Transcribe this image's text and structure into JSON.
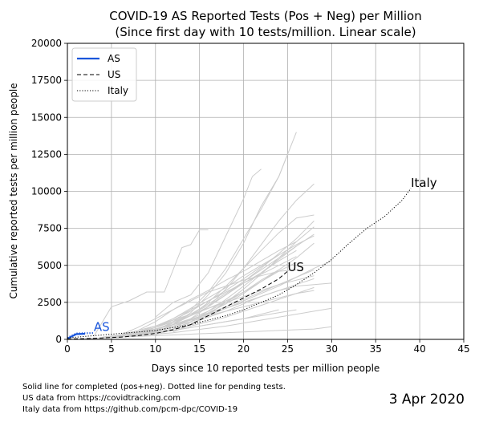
{
  "chart_data": {
    "type": "line",
    "title": "COVID-19 AS Reported Tests (Pos + Neg) per Million",
    "subtitle": "(Since first day with 10 tests/million. Linear scale)",
    "xlabel": "Days since 10 reported tests per million people",
    "ylabel": "Cumulative reported tests per million people",
    "xlim": [
      0,
      45
    ],
    "ylim": [
      0,
      20000
    ],
    "xticks": [
      0,
      5,
      10,
      15,
      20,
      25,
      30,
      35,
      40,
      45
    ],
    "yticks": [
      0,
      2500,
      5000,
      7500,
      10000,
      12500,
      15000,
      17500,
      20000
    ],
    "grid": true,
    "legend": {
      "placement": "top-left",
      "entries": [
        {
          "label": "AS",
          "style": "solid",
          "color": "#1a56db"
        },
        {
          "label": "US",
          "style": "dashed",
          "color": "#000000"
        },
        {
          "label": "Italy",
          "style": "dotted",
          "color": "#000000"
        }
      ]
    },
    "series": [
      {
        "name": "AS",
        "style": "solid",
        "color": "#1a56db",
        "x": [
          0,
          1,
          2
        ],
        "y": [
          50,
          350,
          380
        ]
      },
      {
        "name": "AS",
        "style": "dotted",
        "color": "#1a56db",
        "x": [
          0,
          1,
          2,
          3
        ],
        "y": [
          100,
          400,
          420,
          430
        ]
      },
      {
        "name": "US",
        "style": "dashed",
        "color": "#000000",
        "x": [
          0,
          2,
          4,
          6,
          8,
          10,
          12,
          14,
          16,
          18,
          20,
          22,
          24,
          25
        ],
        "y": [
          20,
          50,
          100,
          150,
          250,
          400,
          650,
          1000,
          1600,
          2200,
          2800,
          3400,
          4100,
          4600
        ]
      },
      {
        "name": "Italy",
        "style": "dotted",
        "color": "#000000",
        "x": [
          0,
          2,
          4,
          6,
          8,
          10,
          12,
          14,
          16,
          18,
          20,
          22,
          24,
          26,
          28,
          30,
          32,
          34,
          36,
          38,
          39
        ],
        "y": [
          100,
          200,
          300,
          400,
          500,
          600,
          800,
          1000,
          1300,
          1600,
          2000,
          2500,
          3000,
          3700,
          4500,
          5400,
          6500,
          7500,
          8300,
          9400,
          10200
        ]
      }
    ],
    "annotations": [
      {
        "text": "AS",
        "x": 3,
        "y": 570,
        "color": "#1a56db"
      },
      {
        "text": "US",
        "x": 25,
        "y": 4600,
        "color": "#000000"
      },
      {
        "text": "Italy",
        "x": 39,
        "y": 10300,
        "color": "#000000"
      }
    ],
    "background_series_color": "#cccccc",
    "background_series": [
      {
        "x": [
          3,
          5,
          7,
          9,
          11,
          13,
          14,
          15,
          16
        ],
        "y": [
          200,
          2200,
          2600,
          3200,
          3200,
          6200,
          6400,
          7400,
          7400
        ]
      },
      {
        "x": [
          10,
          12,
          14,
          16,
          18,
          20,
          21,
          22
        ],
        "y": [
          1500,
          2500,
          3000,
          4500,
          7000,
          9500,
          11000,
          11500
        ]
      },
      {
        "x": [
          12,
          14,
          16,
          18,
          20,
          22,
          24,
          26
        ],
        "y": [
          1000,
          1800,
          3000,
          4500,
          6500,
          9000,
          11000,
          14000
        ]
      },
      {
        "x": [
          10,
          12,
          14,
          16,
          18,
          20,
          22,
          24,
          25
        ],
        "y": [
          600,
          1200,
          2000,
          3200,
          4800,
          6800,
          8800,
          11000,
          12500
        ]
      },
      {
        "x": [
          12,
          14,
          16,
          18,
          20,
          22,
          24,
          26,
          28
        ],
        "y": [
          700,
          1400,
          2200,
          3400,
          4800,
          6400,
          8000,
          9400,
          10500
        ]
      },
      {
        "x": [
          10,
          12,
          14,
          16,
          18,
          20,
          22,
          24,
          26,
          28
        ],
        "y": [
          500,
          1000,
          1600,
          2500,
          3600,
          4800,
          6000,
          7200,
          8200,
          8400
        ]
      },
      {
        "x": [
          8,
          10,
          12,
          14,
          16,
          18,
          20,
          22,
          24,
          26,
          28
        ],
        "y": [
          300,
          700,
          1100,
          1600,
          2200,
          3000,
          3900,
          4800,
          5800,
          6800,
          8000
        ]
      },
      {
        "x": [
          8,
          10,
          12,
          14,
          16,
          18,
          20,
          22,
          24,
          26,
          28
        ],
        "y": [
          250,
          550,
          900,
          1300,
          1800,
          2400,
          3100,
          3900,
          4700,
          5500,
          6500
        ]
      },
      {
        "x": [
          6,
          8,
          10,
          12,
          14,
          16,
          18,
          20,
          22,
          24,
          26
        ],
        "y": [
          300,
          500,
          800,
          1200,
          1700,
          2300,
          3000,
          3800,
          4500,
          5300,
          6000
        ]
      },
      {
        "x": [
          6,
          8,
          10,
          12,
          14,
          16,
          18,
          20,
          22,
          24,
          26,
          28,
          30
        ],
        "y": [
          200,
          400,
          600,
          900,
          1200,
          1600,
          2100,
          2600,
          3100,
          3600,
          4200,
          4800,
          5300
        ]
      },
      {
        "x": [
          4,
          6,
          8,
          10,
          12,
          14,
          16,
          18,
          20,
          22,
          24,
          26
        ],
        "y": [
          150,
          300,
          500,
          800,
          1200,
          1600,
          2100,
          2600,
          3200,
          3900,
          4600,
          5200
        ]
      },
      {
        "x": [
          4,
          6,
          8,
          10,
          12,
          14,
          16,
          18,
          20,
          22,
          24,
          26,
          28,
          30
        ],
        "y": [
          100,
          200,
          350,
          550,
          800,
          1100,
          1500,
          1900,
          2400,
          2900,
          3300,
          3600,
          3700,
          3800
        ]
      },
      {
        "x": [
          4,
          6,
          8,
          10,
          12,
          14,
          16,
          18,
          20,
          22,
          24
        ],
        "y": [
          100,
          250,
          450,
          700,
          1000,
          1400,
          1900,
          2500,
          3200,
          4000,
          4700
        ]
      },
      {
        "x": [
          2,
          4,
          6,
          8,
          10,
          12,
          14,
          16,
          18,
          20,
          22,
          24,
          26,
          28
        ],
        "y": [
          50,
          100,
          200,
          350,
          500,
          700,
          900,
          1200,
          1500,
          1900,
          2300,
          2700,
          3100,
          3500
        ]
      },
      {
        "x": [
          6,
          8,
          10,
          12,
          14,
          16,
          18,
          20,
          22,
          24,
          26
        ],
        "y": [
          300,
          800,
          1400,
          2000,
          2600,
          3200,
          3600,
          4000,
          4300,
          4600,
          4700
        ]
      },
      {
        "x": [
          8,
          10,
          12,
          14,
          16,
          18,
          20,
          22,
          24,
          26
        ],
        "y": [
          600,
          1200,
          2000,
          2700,
          3300,
          4000,
          4600,
          5300,
          6000,
          6600
        ]
      },
      {
        "x": [
          10,
          12,
          14,
          16,
          18,
          20,
          22,
          24,
          26,
          28
        ],
        "y": [
          800,
          1400,
          2100,
          2800,
          3500,
          4300,
          5000,
          5700,
          6400,
          7000
        ]
      },
      {
        "x": [
          6,
          8,
          10,
          12,
          14,
          16,
          18,
          20,
          22,
          24,
          26,
          28
        ],
        "y": [
          200,
          400,
          700,
          1000,
          1300,
          1600,
          1900,
          2200,
          2500,
          2800,
          3100,
          3300
        ]
      },
      {
        "x": [
          4,
          6,
          8,
          10,
          12,
          14,
          16,
          18,
          20,
          22,
          24,
          26,
          28,
          30
        ],
        "y": [
          100,
          150,
          250,
          350,
          450,
          600,
          750,
          900,
          1100,
          1300,
          1500,
          1700,
          1900,
          2100
        ]
      },
      {
        "x": [
          2,
          4,
          6,
          8,
          10,
          12,
          14,
          16,
          18,
          20,
          22,
          24,
          26,
          28,
          30
        ],
        "y": [
          50,
          100,
          150,
          200,
          250,
          300,
          350,
          400,
          450,
          500,
          550,
          600,
          650,
          700,
          850
        ]
      },
      {
        "x": [
          6,
          8,
          10,
          12,
          14,
          16,
          18,
          20,
          22,
          24,
          26,
          28
        ],
        "y": [
          250,
          450,
          700,
          1000,
          1350,
          1750,
          2200,
          2700,
          3200,
          3700,
          4200,
          4700
        ]
      },
      {
        "x": [
          8,
          10,
          12,
          14,
          16,
          18,
          20,
          22,
          24
        ],
        "y": [
          400,
          800,
          1300,
          1900,
          2600,
          3300,
          4100,
          4900,
          5700
        ]
      },
      {
        "x": [
          10,
          12,
          14,
          16,
          18,
          20,
          22,
          24,
          26
        ],
        "y": [
          300,
          700,
          1200,
          1900,
          2700,
          3600,
          4500,
          5400,
          6300
        ]
      },
      {
        "x": [
          12,
          14,
          16,
          18,
          20,
          22,
          24,
          26,
          28
        ],
        "y": [
          500,
          1000,
          1700,
          2500,
          3400,
          4400,
          5500,
          6600,
          7600
        ]
      },
      {
        "x": [
          4,
          6,
          8,
          10,
          12,
          14,
          16,
          18,
          20,
          22,
          24,
          26,
          28
        ],
        "y": [
          150,
          300,
          500,
          700,
          1000,
          1300,
          1700,
          2100,
          2500,
          2900,
          3300,
          3700,
          4100
        ]
      },
      {
        "x": [
          4,
          6,
          8,
          10,
          12,
          14,
          16,
          18,
          20,
          22,
          24,
          26
        ],
        "y": [
          100,
          200,
          300,
          450,
          600,
          800,
          1000,
          1200,
          1400,
          1600,
          1800,
          2000
        ]
      },
      {
        "x": [
          2,
          4,
          6,
          8,
          10,
          12,
          14,
          16,
          18,
          20,
          22,
          24
        ],
        "y": [
          50,
          100,
          200,
          300,
          450,
          600,
          800,
          1000,
          1200,
          1400,
          1700,
          2000
        ]
      },
      {
        "x": [
          6,
          8,
          10,
          12,
          14,
          16,
          18,
          20,
          22,
          24,
          26,
          28
        ],
        "y": [
          300,
          600,
          900,
          1300,
          1700,
          2100,
          2500,
          2900,
          3300,
          3700,
          4000,
          4300
        ]
      },
      {
        "x": [
          8,
          10,
          12,
          14,
          16,
          18,
          20,
          22,
          24,
          26
        ],
        "y": [
          500,
          900,
          1400,
          2000,
          2600,
          3200,
          3800,
          4400,
          5000,
          5600
        ]
      },
      {
        "x": [
          10,
          12,
          14,
          16,
          18,
          20,
          22,
          24,
          26,
          28
        ],
        "y": [
          600,
          1100,
          1700,
          2400,
          3100,
          3900,
          4700,
          5500,
          6300,
          7100
        ]
      }
    ]
  },
  "footnotes": {
    "line1": "Solid line for completed (pos+neg). Dotted line for pending tests.",
    "line2": "US data from https://covidtracking.com",
    "line3": "Italy data from https://github.com/pcm-dpc/COVID-19"
  },
  "date_label": "3 Apr 2020"
}
